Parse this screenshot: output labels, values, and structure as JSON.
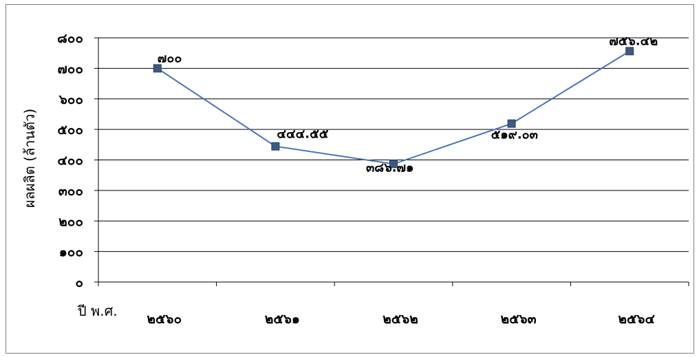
{
  "chart_data": {
    "type": "line",
    "title": "",
    "xlabel": "ปี พ.ศ.",
    "ylabel": "ผลผลิต (ล้านตัว)",
    "categories": [
      "๒๕๖๐",
      "๒๕๖๑",
      "๒๕๖๒",
      "๒๕๖๓",
      "๒๕๖๔"
    ],
    "series": [
      {
        "values": [
          700,
          444.55,
          386.71,
          519.03,
          756.42
        ],
        "data_labels": [
          "๗๐๐",
          "๔๔๔.๕๕",
          "๓๘๖.๗๑",
          "๕๑๙.๐๓",
          "๗๕๖.๔๒"
        ]
      }
    ],
    "ylim": [
      0,
      800
    ],
    "yticks": [
      0,
      100,
      200,
      300,
      400,
      500,
      600,
      700,
      800
    ],
    "ytick_labels": [
      "๐",
      "๑๐๐",
      "๒๐๐",
      "๓๐๐",
      "๔๐๐",
      "๕๐๐",
      "๖๐๐",
      "๗๐๐",
      "๘๐๐"
    ],
    "grid": true,
    "legend": "none",
    "colors": {
      "line": "#4472C4",
      "marker": "#3A5A86",
      "marker_border": "#2a3f5f",
      "grid": "#000000"
    }
  }
}
